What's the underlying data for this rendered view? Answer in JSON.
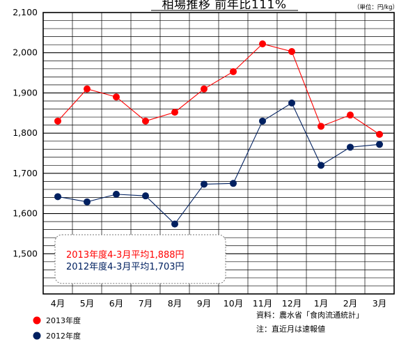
{
  "chart_data": {
    "type": "line",
    "title": "相場推移 前年比111%",
    "unit": "（単位：円/kg）",
    "xlabel": "",
    "ylabel": "",
    "categories": [
      "4月",
      "5月",
      "6月",
      "7月",
      "8月",
      "9月",
      "10月",
      "11月",
      "12月",
      "1月",
      "2月",
      "3月"
    ],
    "ylim": [
      1400,
      2100
    ],
    "yticks": [
      "2,100",
      "2,000",
      "1,900",
      "1,800",
      "1,700",
      "1,600",
      "1,500"
    ],
    "grid": true,
    "series": [
      {
        "name": "2013年度",
        "color": "#ff0000",
        "values": [
          1830,
          1910,
          1890,
          1830,
          1852,
          1910,
          1953,
          2022,
          2003,
          1817,
          1845,
          1797
        ]
      },
      {
        "name": "2012年度",
        "color": "#002060",
        "values": [
          1642,
          1629,
          1648,
          1644,
          1574,
          1673,
          1675,
          1830,
          1875,
          1720,
          1765,
          1772
        ]
      }
    ],
    "averages": [
      {
        "text": "2013年度4-3月平均1,888円",
        "color": "#ff0000"
      },
      {
        "text": "2012年度4-3月平均1,703円",
        "color": "#002060"
      }
    ],
    "notes": [
      "資料：農水省「食肉流通統計」",
      "注：直近月は速報値"
    ],
    "legend_position": "bottom-left"
  }
}
